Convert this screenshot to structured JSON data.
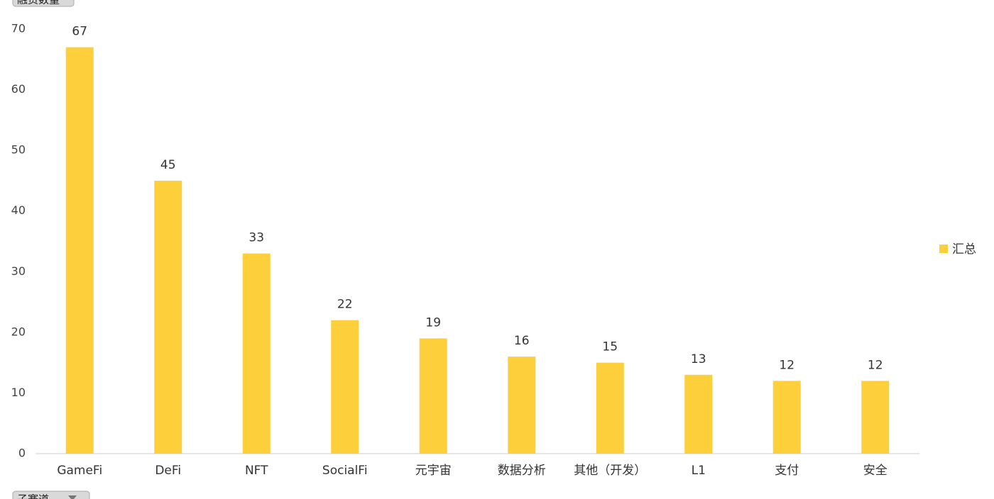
{
  "chart_data": {
    "type": "bar",
    "ylabel": "融资数量",
    "xlabel": "子赛道",
    "categories": [
      "GameFi",
      "DeFi",
      "NFT",
      "SocialFi",
      "元宇宙",
      "数据分析",
      "其他（开发）",
      "L1",
      "支付",
      "安全"
    ],
    "series": [
      {
        "name": "汇总",
        "color": "#fdd03b",
        "values": [
          67,
          45,
          33,
          22,
          19,
          16,
          15,
          13,
          12,
          12
        ]
      }
    ],
    "ylim": [
      0,
      70
    ],
    "yticks": [
      0,
      10,
      20,
      30,
      40,
      50,
      60,
      70
    ],
    "grid": false,
    "legend": "right"
  }
}
